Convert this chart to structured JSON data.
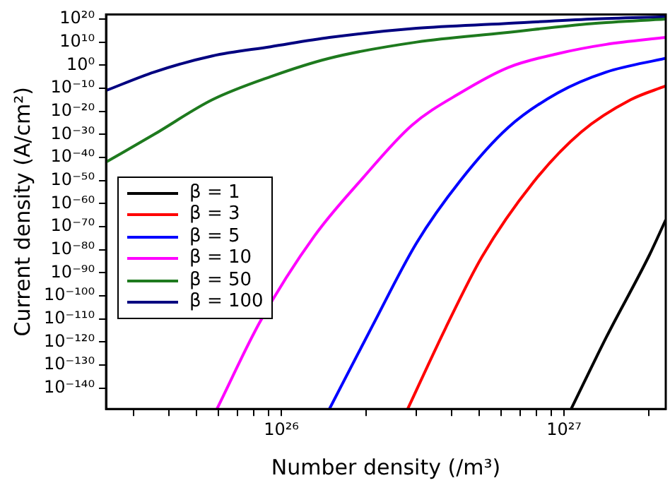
{
  "chart_data": {
    "type": "line",
    "xlabel": "Number density (/m³)",
    "ylabel": "Current density (A/cm²)",
    "log": "xy",
    "grid": false,
    "legend": "left",
    "marker": "none",
    "line_style": "solid",
    "xlim": [
      2.4e+25,
      2.29e+27
    ],
    "xticks": [
      {
        "value": 3e+25,
        "label": null
      },
      {
        "value": 4e+25,
        "label": null
      },
      {
        "value": 5e+25,
        "label": null
      },
      {
        "value": 6e+25,
        "label": null
      },
      {
        "value": 7e+25,
        "label": null
      },
      {
        "value": 8e+25,
        "label": null
      },
      {
        "value": 9e+25,
        "label": null
      },
      {
        "value": 1e+26,
        "label": "10²⁶"
      },
      {
        "value": 2e+26,
        "label": null
      },
      {
        "value": 3e+26,
        "label": null
      },
      {
        "value": 4e+26,
        "label": null
      },
      {
        "value": 5e+26,
        "label": null
      },
      {
        "value": 6e+26,
        "label": null
      },
      {
        "value": 7e+26,
        "label": null
      },
      {
        "value": 8e+26,
        "label": null
      },
      {
        "value": 9e+26,
        "label": null
      },
      {
        "value": 1e+27,
        "label": "10²⁷"
      },
      {
        "value": 2e+27,
        "label": null
      }
    ],
    "ylim": [
      1e-149,
      1e+22
    ],
    "yticks": [
      {
        "value": 1e-140,
        "label": "10⁻¹⁴⁰"
      },
      {
        "value": 1e-130,
        "label": "10⁻¹³⁰"
      },
      {
        "value": 1e-120,
        "label": "10⁻¹²⁰"
      },
      {
        "value": 1e-110,
        "label": "10⁻¹¹⁰"
      },
      {
        "value": 1e-100,
        "label": "10⁻¹⁰⁰"
      },
      {
        "value": 1e-90,
        "label": "10⁻⁹⁰"
      },
      {
        "value": 1e-80,
        "label": "10⁻⁸⁰"
      },
      {
        "value": 1e-70,
        "label": "10⁻⁷⁰"
      },
      {
        "value": 1e-60,
        "label": "10⁻⁶⁰"
      },
      {
        "value": 1e-50,
        "label": "10⁻⁵⁰"
      },
      {
        "value": 1e-40,
        "label": "10⁻⁴⁰"
      },
      {
        "value": 1e-30,
        "label": "10⁻³⁰"
      },
      {
        "value": 1e-20,
        "label": "10⁻²⁰"
      },
      {
        "value": 1e-10,
        "label": "10⁻¹⁰"
      },
      {
        "value": 1,
        "label": "10⁰"
      },
      {
        "value": 10000000000.0,
        "label": "10¹⁰"
      },
      {
        "value": 1e+20,
        "label": "10²⁰"
      }
    ],
    "series": [
      {
        "name": "β = 1",
        "color": "#000000",
        "x": [
          1.06e+27,
          1.41e+27,
          2.01e+27,
          2.29e+27
        ],
        "values": [
          1e-149,
          1e-118,
          1e-82,
          1e-67
        ]
      },
      {
        "name": "β = 3",
        "color": "#ff0000",
        "x": [
          2.8e+26,
          3.81e+26,
          5.13e+26,
          7.76e+26,
          1.15e+27,
          1.72e+27,
          2.29e+27
        ],
        "values": [
          1e-149,
          1e-114,
          1e-83,
          1e-51,
          1e-29,
          1e-15,
          1e-09
        ]
      },
      {
        "name": "β = 5",
        "color": "#0000ff",
        "x": [
          1.48e+26,
          2.1e+26,
          3.01e+26,
          4.3e+26,
          6.35e+26,
          9.51e+26,
          1.41e+27,
          2.29e+27
        ],
        "values": [
          1e-149,
          1e-113,
          1e-77,
          1e-50,
          1e-27,
          1e-12,
          0.001,
          1000.0
        ]
      },
      {
        "name": "β = 10",
        "color": "#ff00ff",
        "x": [
          5.92e+25,
          8.43e+25,
          1.31e+26,
          1.94e+26,
          2.9e+26,
          4.3e+26,
          6.35e+26,
          9.51e+26,
          1.41e+27,
          2.29e+27
        ],
        "values": [
          1e-149,
          1e-111,
          1e-74,
          1e-49,
          1e-26,
          1e-12,
          0.1,
          100000.0,
          1000000000.0,
          1000000000000.0
        ]
      },
      {
        "name": "β = 50",
        "color": "#1e7a1e",
        "x": [
          2.4e+25,
          3.55e+25,
          5.7e+25,
          9.16e+25,
          1.48e+26,
          3.01e+26,
          6.12e+26,
          1.25e+27,
          2.29e+27
        ],
        "values": [
          1e-42,
          1e-30,
          1e-15,
          1e-05,
          1000.0,
          10000000000.0,
          100000000000000.0,
          1e+18,
          1e+20
        ]
      },
      {
        "name": "β = 100",
        "color": "#000080",
        "x": [
          2.4e+25,
          3.55e+25,
          5.7e+25,
          9.16e+25,
          1.48e+26,
          3.01e+26,
          6.12e+26,
          1.25e+27,
          2.29e+27
        ],
        "values": [
          1e-11,
          0.001,
          10000.0,
          100000000.0,
          1000000000000.0,
          1e+16,
          1e+18,
          1e+20,
          1e+21
        ]
      }
    ]
  }
}
